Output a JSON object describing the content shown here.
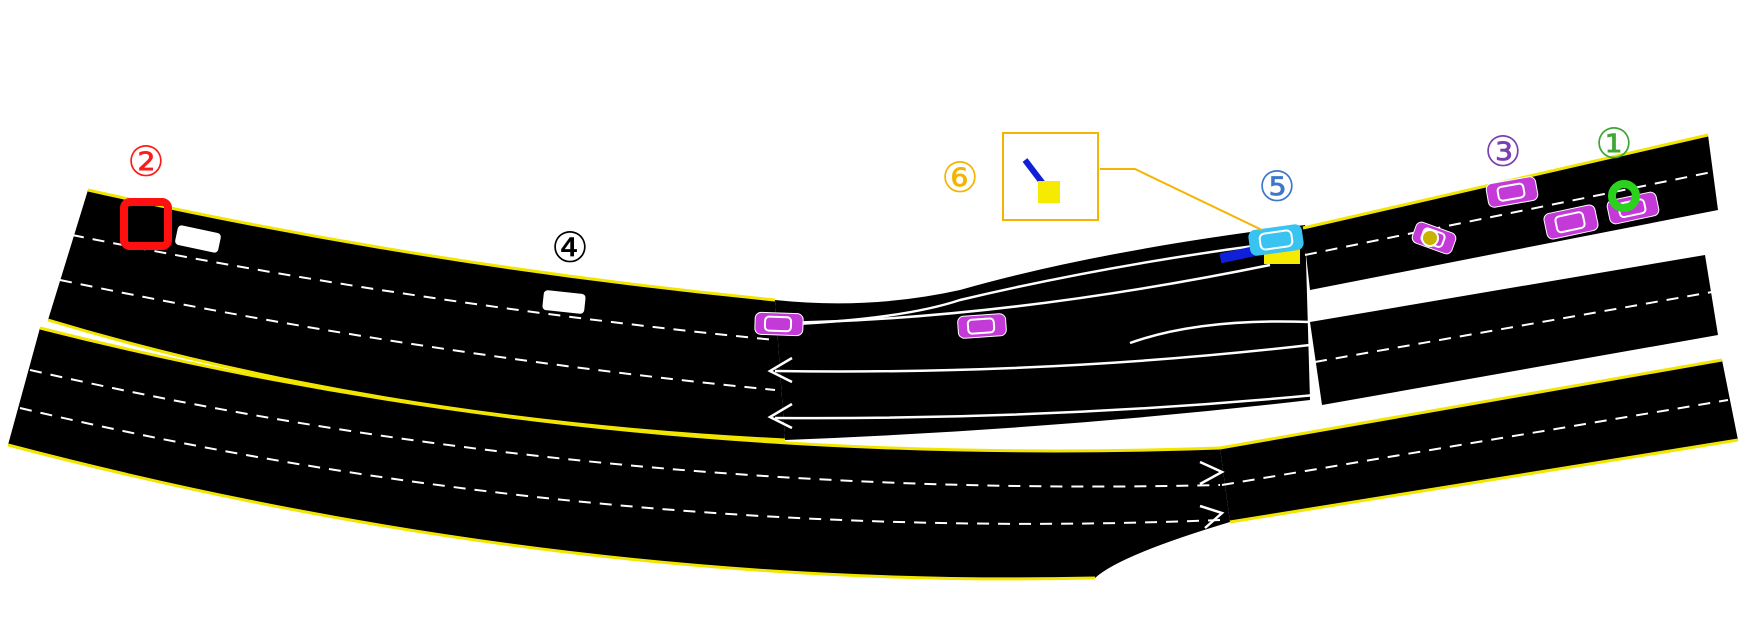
{
  "labels": {
    "one": "①",
    "two": "②",
    "three": "③",
    "four": "④",
    "five": "⑤",
    "six": "⑥"
  },
  "colors": {
    "background": "#ffffff",
    "road": "#000000",
    "road_edge": "#f2e600",
    "lane_marking": "#ffffff",
    "vehicle": "#c43ad9",
    "vehicle_outline": "#ffffff",
    "parked_vehicle": "#ffffff",
    "ego_vehicle": "#39c3f0",
    "sensor_yellow": "#f5ea00",
    "sensor_blue": "#1020d8",
    "goal_marker": "#2ad21e",
    "start_marker": "#ff1010",
    "pedestrian": "#c8b400",
    "label_one": "#3fa535",
    "label_two": "#ff1a1a",
    "label_three": "#7a3fb0",
    "label_four": "#000000",
    "label_five": "#3d78c8",
    "label_six": "#f5b400",
    "callout": "#f5b400"
  }
}
